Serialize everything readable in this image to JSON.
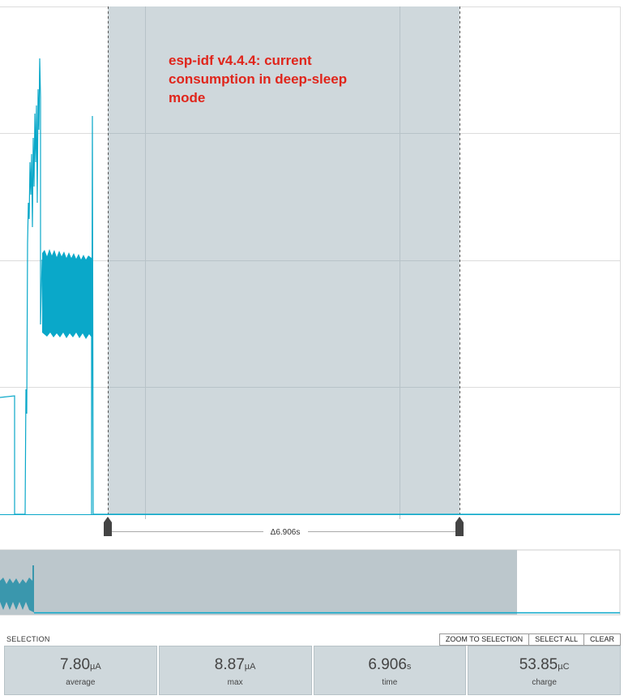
{
  "annotation": "esp-idf v4.4.4: current consumption in deep-sleep mode",
  "selection_delta": "Δ6.906s",
  "selection_label": "SELECTION",
  "buttons": [
    "ZOOM TO SELECTION",
    "SELECT ALL",
    "CLEAR"
  ],
  "stats": [
    {
      "value": "7.80",
      "unit": "µA",
      "label": "average"
    },
    {
      "value": "8.87",
      "unit": "µA",
      "label": "max"
    },
    {
      "value": "6.906",
      "unit": "s",
      "label": "time"
    },
    {
      "value": "53.85",
      "unit": "µC",
      "label": "charge"
    }
  ]
}
